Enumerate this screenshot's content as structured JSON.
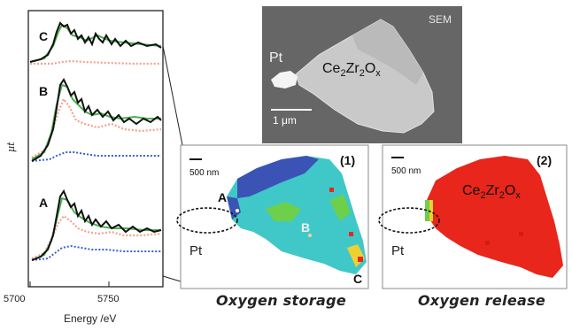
{
  "spectra_panel": {
    "curves": [
      {
        "label": "C",
        "colors": {
          "data": "#111111",
          "fit": "#4caf50",
          "oxidized": "#f4a090",
          "reduced": "#3a5fd0"
        }
      },
      {
        "label": "B",
        "colors": {
          "data": "#111111",
          "fit": "#4caf50",
          "oxidized": "#f4a090",
          "reduced": "#3a5fd0"
        }
      },
      {
        "label": "A",
        "colors": {
          "data": "#111111",
          "fit": "#4caf50",
          "oxidized": "#f4a090",
          "reduced": "#3a5fd0"
        }
      }
    ],
    "ylabel": "μt",
    "xlabel": "Energy /eV",
    "xticks": [
      "5700",
      "5750"
    ],
    "xlim": [
      5700,
      5785
    ]
  },
  "sem": {
    "tag": "SEM",
    "pt_label": "Pt",
    "particle": {
      "prefix1": "Ce",
      "sub1": "2",
      "prefix2": "Zr",
      "sub2": "2",
      "prefix3": "O",
      "sub3": "x"
    },
    "scalebar": "1 μm"
  },
  "map1": {
    "index": "(1)",
    "scalebar": "500 nm",
    "pt_label": "Pt",
    "points": [
      "A",
      "B",
      "C"
    ],
    "caption": "Oxygen storage"
  },
  "map2": {
    "index": "(2)",
    "scalebar": "500 nm",
    "pt_label": "Pt",
    "particle": {
      "prefix1": "Ce",
      "sub1": "2",
      "prefix2": "Zr",
      "sub2": "2",
      "prefix3": "O",
      "sub3": "x"
    },
    "caption": "Oxygen release"
  },
  "colors": {
    "map_red": "#e8261b",
    "map_cyan": "#40c8c8",
    "map_blue": "#3b53b5",
    "map_green": "#6ecf4a",
    "map_yellow": "#f0d030",
    "sem_bg": "#6b6b6b"
  }
}
